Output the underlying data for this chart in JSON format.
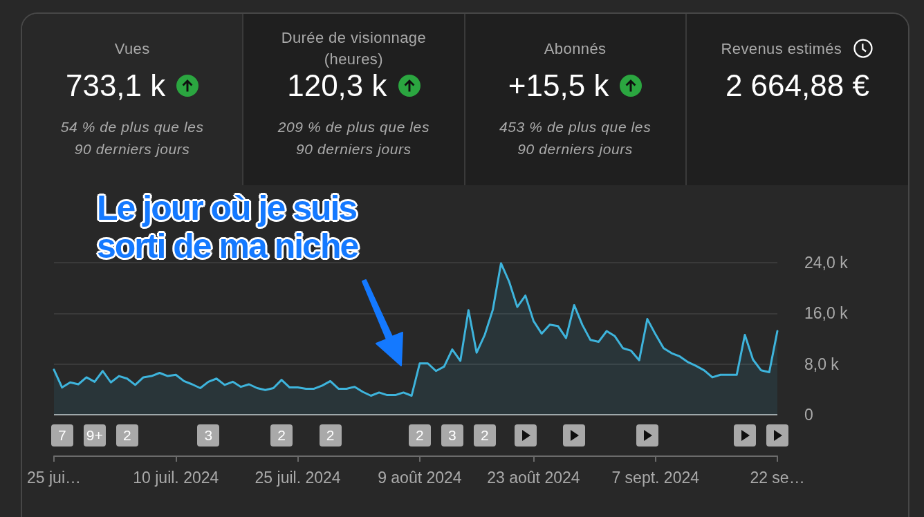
{
  "chart_data": [
    {
      "type": "other",
      "title": "Vues",
      "annotations": [
        "733,1 k",
        "54 % de plus que les 90 derniers jours"
      ]
    },
    {
      "type": "other",
      "title": "Durée de visionnage (heures)",
      "annotations": [
        "120,3 k",
        "209 % de plus que les 90 derniers jours"
      ]
    },
    {
      "type": "other",
      "title": "Abonnés",
      "annotations": [
        "+15,5 k",
        "453 % de plus que les 90 derniers jours"
      ]
    },
    {
      "type": "other",
      "title": "Revenus estimés",
      "annotations": [
        "2 664,88 €"
      ]
    },
    {
      "type": "area",
      "x": [
        "2024-06-25",
        "2024-06-26",
        "2024-06-27",
        "2024-06-28",
        "2024-06-29",
        "2024-06-30",
        "2024-07-01",
        "2024-07-02",
        "2024-07-03",
        "2024-07-04",
        "2024-07-05",
        "2024-07-06",
        "2024-07-07",
        "2024-07-08",
        "2024-07-09",
        "2024-07-10",
        "2024-07-11",
        "2024-07-12",
        "2024-07-13",
        "2024-07-14",
        "2024-07-15",
        "2024-07-16",
        "2024-07-17",
        "2024-07-18",
        "2024-07-19",
        "2024-07-20",
        "2024-07-21",
        "2024-07-22",
        "2024-07-23",
        "2024-07-24",
        "2024-07-25",
        "2024-07-26",
        "2024-07-27",
        "2024-07-28",
        "2024-07-29",
        "2024-07-30",
        "2024-07-31",
        "2024-08-01",
        "2024-08-02",
        "2024-08-03",
        "2024-08-04",
        "2024-08-05",
        "2024-08-06",
        "2024-08-07",
        "2024-08-08",
        "2024-08-09",
        "2024-08-10",
        "2024-08-11",
        "2024-08-12",
        "2024-08-13",
        "2024-08-14",
        "2024-08-15",
        "2024-08-16",
        "2024-08-17",
        "2024-08-18",
        "2024-08-19",
        "2024-08-20",
        "2024-08-21",
        "2024-08-22",
        "2024-08-23",
        "2024-08-24",
        "2024-08-25",
        "2024-08-26",
        "2024-08-27",
        "2024-08-28",
        "2024-08-29",
        "2024-08-30",
        "2024-08-31",
        "2024-09-01",
        "2024-09-02",
        "2024-09-03",
        "2024-09-04",
        "2024-09-05",
        "2024-09-06",
        "2024-09-07",
        "2024-09-08",
        "2024-09-09",
        "2024-09-10",
        "2024-09-11",
        "2024-09-12",
        "2024-09-13",
        "2024-09-14",
        "2024-09-15",
        "2024-09-16",
        "2024-09-17",
        "2024-09-18",
        "2024-09-19",
        "2024-09-20",
        "2024-09-21",
        "2024-09-22"
      ],
      "values": [
        7100,
        4300,
        5100,
        4800,
        5900,
        5200,
        6900,
        5100,
        6100,
        5700,
        4700,
        5900,
        6100,
        6600,
        6100,
        6300,
        5300,
        4800,
        4200,
        5200,
        5700,
        4700,
        5200,
        4400,
        4800,
        4200,
        3900,
        4200,
        5500,
        4300,
        4300,
        4100,
        4100,
        4600,
        5300,
        4100,
        4100,
        4400,
        3600,
        3000,
        3500,
        3100,
        3100,
        3500,
        3000,
        8100,
        8100,
        6900,
        7600,
        10300,
        8500,
        16500,
        9800,
        12600,
        16600,
        23900,
        21000,
        17000,
        18800,
        14800,
        12800,
        14200,
        14000,
        12100,
        17300,
        14200,
        11800,
        11500,
        13200,
        12400,
        10500,
        10100,
        8600,
        15100,
        12700,
        10500,
        9700,
        9200,
        8300,
        7700,
        7000,
        5900,
        6300,
        6300,
        6300,
        12600,
        8700,
        7000,
        6700,
        13200
      ],
      "color": "#3eb4dc",
      "xlim": [
        "2024-06-25",
        "2024-09-22"
      ],
      "xticks": [
        {
          "value": "2024-06-25",
          "label": "25 jui…"
        },
        {
          "value": "2024-07-10",
          "label": "10 juil. 2024"
        },
        {
          "value": "2024-07-25",
          "label": "25 juil. 2024"
        },
        {
          "value": "2024-08-09",
          "label": "9 août 2024"
        },
        {
          "value": "2024-08-23",
          "label": "23 août 2024"
        },
        {
          "value": "2024-09-07",
          "label": "7 sept. 2024"
        },
        {
          "value": "2024-09-22",
          "label": "22 se…"
        }
      ],
      "ylim": [
        0,
        24000
      ],
      "yticks": [
        0,
        {
          "value": 8000,
          "label": "8,0 k"
        },
        {
          "value": 16000,
          "label": "16,0 k"
        },
        {
          "value": 24000,
          "label": "24,0 k"
        }
      ],
      "grid": "y",
      "annotations": [
        "Le jour où je suis sorti de ma niche",
        "7",
        "9+",
        "2",
        "3",
        "2",
        "2",
        "2",
        "3",
        "2"
      ]
    }
  ]
}
